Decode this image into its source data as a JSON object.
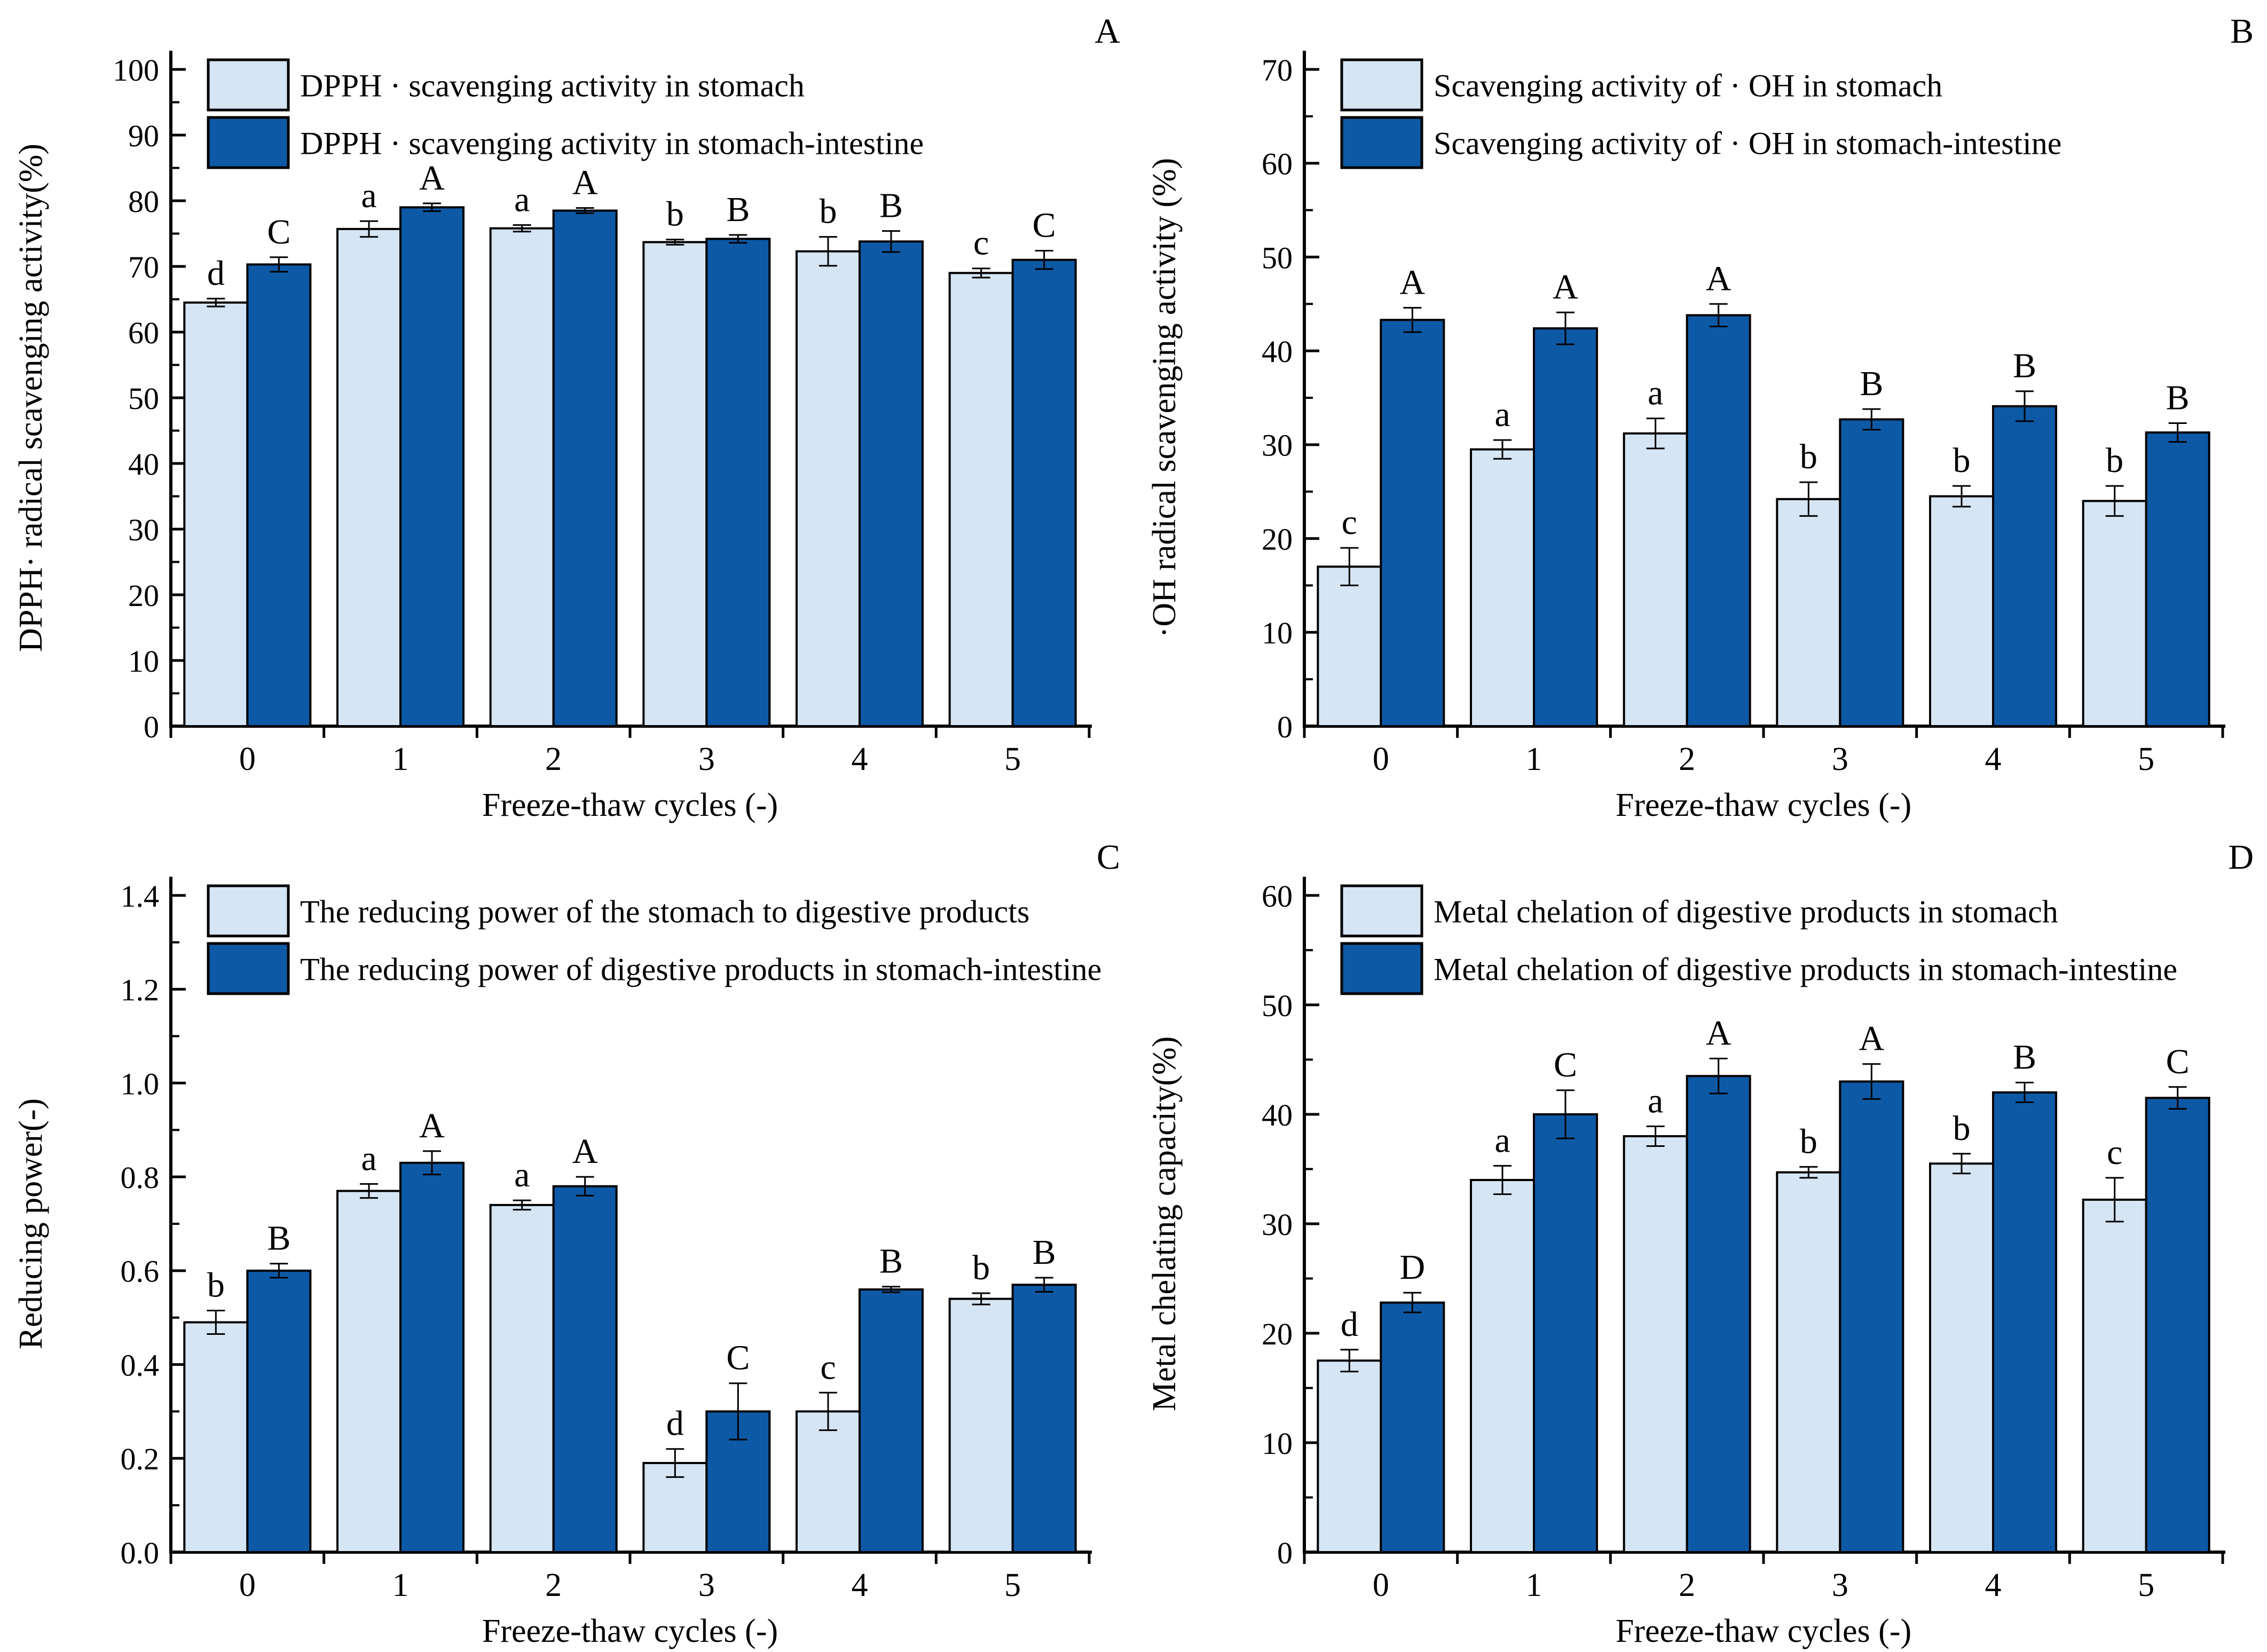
{
  "figure": {
    "background": "#ffffff",
    "x_axis_title": "Freeze-thaw cycles (-)"
  },
  "colors": {
    "stomach_fill": "#d6e5f4",
    "stomach_intestine_fill": "#0e59a5",
    "bar_edge": "#000000",
    "axis": "#000000"
  },
  "chart_data": [
    {
      "type": "bar",
      "panel_label": "A",
      "ylabel": "DPPH· radical scavenging activity(%)",
      "xlabel": "Freeze-thaw cycles (-)",
      "categories": [
        "0",
        "1",
        "2",
        "3",
        "4",
        "5"
      ],
      "ylim": [
        0,
        100
      ],
      "ystep": 10,
      "minor_step": 5,
      "decimals": 0,
      "legend_position": "top-left",
      "grid": false,
      "series": [
        {
          "name": "DPPH · scavenging activity in stomach",
          "role": "stomach",
          "values": [
            64.5,
            75.7,
            75.8,
            73.7,
            72.3,
            69.0
          ],
          "errors": [
            0.6,
            1.2,
            0.5,
            0.4,
            2.2,
            0.7
          ],
          "letters": [
            "d",
            "a",
            "a",
            "b",
            "b",
            "c"
          ]
        },
        {
          "name": "DPPH · scavenging activity in stomach-intestine",
          "role": "stomach-intestine",
          "values": [
            70.3,
            79.0,
            78.5,
            74.2,
            73.8,
            71.0
          ],
          "errors": [
            1.1,
            0.6,
            0.4,
            0.6,
            1.6,
            1.4
          ],
          "letters": [
            "C",
            "A",
            "A",
            "B",
            "B",
            "C"
          ]
        }
      ]
    },
    {
      "type": "bar",
      "panel_label": "B",
      "ylabel": "·OH radical scavenging activity (%)",
      "xlabel": "Freeze-thaw cycles (-)",
      "categories": [
        "0",
        "1",
        "2",
        "3",
        "4",
        "5"
      ],
      "ylim": [
        0,
        70
      ],
      "ystep": 10,
      "minor_step": 5,
      "decimals": 0,
      "legend_position": "top-left",
      "grid": false,
      "series": [
        {
          "name": "Scavenging activity of · OH in stomach",
          "role": "stomach",
          "values": [
            17.0,
            29.5,
            31.2,
            24.2,
            24.5,
            24.0
          ],
          "errors": [
            2.0,
            1.0,
            1.6,
            1.8,
            1.1,
            1.6
          ],
          "letters": [
            "c",
            "a",
            "a",
            "b",
            "b",
            "b"
          ]
        },
        {
          "name": "Scavenging activity of · OH in stomach-intestine",
          "role": "stomach-intestine",
          "values": [
            43.3,
            42.4,
            43.8,
            32.7,
            34.1,
            31.3
          ],
          "errors": [
            1.3,
            1.7,
            1.2,
            1.1,
            1.6,
            1.0
          ],
          "letters": [
            "A",
            "A",
            "A",
            "B",
            "B",
            "B"
          ]
        }
      ]
    },
    {
      "type": "bar",
      "panel_label": "C",
      "ylabel": "Reducing power(-)",
      "xlabel": "Freeze-thaw cycles (-)",
      "categories": [
        "0",
        "1",
        "2",
        "3",
        "4",
        "5"
      ],
      "ylim": [
        0,
        1.4
      ],
      "ystep": 0.2,
      "minor_step": 0.1,
      "decimals": 1,
      "legend_position": "top-left",
      "grid": false,
      "series": [
        {
          "name": "The reducing power of the stomach to digestive products",
          "role": "stomach",
          "values": [
            0.49,
            0.77,
            0.74,
            0.19,
            0.3,
            0.54
          ],
          "errors": [
            0.025,
            0.015,
            0.01,
            0.03,
            0.04,
            0.012
          ],
          "letters": [
            "b",
            "a",
            "a",
            "d",
            "c",
            "b"
          ]
        },
        {
          "name": "The reducing power of digestive products in stomach-intestine",
          "role": "stomach-intestine",
          "values": [
            0.6,
            0.83,
            0.78,
            0.3,
            0.56,
            0.57
          ],
          "errors": [
            0.015,
            0.025,
            0.02,
            0.06,
            0.006,
            0.015
          ],
          "letters": [
            "B",
            "A",
            "A",
            "C",
            "B",
            "B"
          ]
        }
      ]
    },
    {
      "type": "bar",
      "panel_label": "D",
      "ylabel": "Metal chelating capacity(%)",
      "xlabel": "Freeze-thaw cycles (-)",
      "categories": [
        "0",
        "1",
        "2",
        "3",
        "4",
        "5"
      ],
      "ylim": [
        0,
        60
      ],
      "ystep": 10,
      "minor_step": 5,
      "decimals": 0,
      "legend_position": "top-left",
      "grid": false,
      "series": [
        {
          "name": "Metal chelation of digestive products in stomach",
          "role": "stomach",
          "values": [
            17.5,
            34.0,
            38.0,
            34.7,
            35.5,
            32.2
          ],
          "errors": [
            1.0,
            1.3,
            0.9,
            0.5,
            0.9,
            2.0
          ],
          "letters": [
            "d",
            "a",
            "a",
            "b",
            "b",
            "c"
          ]
        },
        {
          "name": "Metal chelation of digestive products in stomach-intestine",
          "role": "stomach-intestine",
          "values": [
            22.8,
            40.0,
            43.5,
            43.0,
            42.0,
            41.5
          ],
          "errors": [
            0.9,
            2.2,
            1.6,
            1.6,
            0.9,
            1.0
          ],
          "letters": [
            "D",
            "C",
            "A",
            "A",
            "B",
            "C"
          ]
        }
      ]
    }
  ]
}
